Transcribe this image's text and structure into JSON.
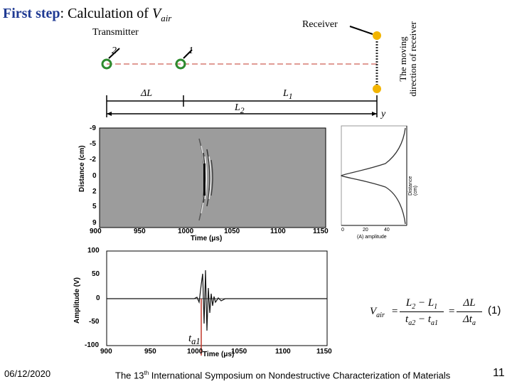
{
  "slide": {
    "title_bold": "First step",
    "title_rest": ": Calculation of ",
    "title_var": "V",
    "title_sub": "air"
  },
  "setup": {
    "receiver_label": "Receiver",
    "transmitter_label": "Transmitter",
    "pos1_label": "1",
    "pos2_label": "2",
    "delta_l_label": "ΔL",
    "l1_label": "L",
    "l1_sub": "1",
    "l2_label": "L",
    "l2_sub": "2",
    "y_label": "y",
    "moving_line1": "The moving",
    "moving_line2": "direction of receiver",
    "transmitter_color": "#2e8b2e",
    "receiver_color": "#f2b400",
    "path_color": "#c0392b"
  },
  "bscan": {
    "ylabel": "Distance (cm)",
    "xlabel": "Time (μs)",
    "y_ticks": [
      "-9",
      "-5",
      "-2",
      "0",
      "2",
      "5",
      "9"
    ],
    "x_ticks": [
      "900",
      "950",
      "1000",
      "1050",
      "1100",
      "1150"
    ]
  },
  "amp_profile": {
    "xlabel": "(A) amplitude",
    "ylabel": "Distance (cm)",
    "tick_labels": [
      "0",
      "20",
      "40"
    ]
  },
  "waveform": {
    "ylabel": "Amplitude (V)",
    "xlabel": "Time (μs)",
    "y_ticks": [
      "100",
      "50",
      "0",
      "-50",
      "-100"
    ],
    "x_ticks": [
      "900",
      "950",
      "1000",
      "1050",
      "1100",
      "1150"
    ],
    "marker_label": "t",
    "marker_sub": "a1",
    "marker_color": "#c0392b"
  },
  "equation": {
    "lhs": "V",
    "lhs_sub": "air",
    "num1": "L",
    "num1_sub_a": "2",
    "num1_sub_b": "1",
    "den1_a": "t",
    "den1_a_sub": "a2",
    "den1_b_sub": "a1",
    "num2": "ΔL",
    "den2": "Δt",
    "den2_sub": "a",
    "number": "(1)"
  },
  "footer": {
    "date": "06/12/2020",
    "conference_pre": "The 13",
    "conference_sup": "th",
    "conference_post": " International Symposium on Nondestructive Characterization of Materials",
    "page": "11"
  }
}
